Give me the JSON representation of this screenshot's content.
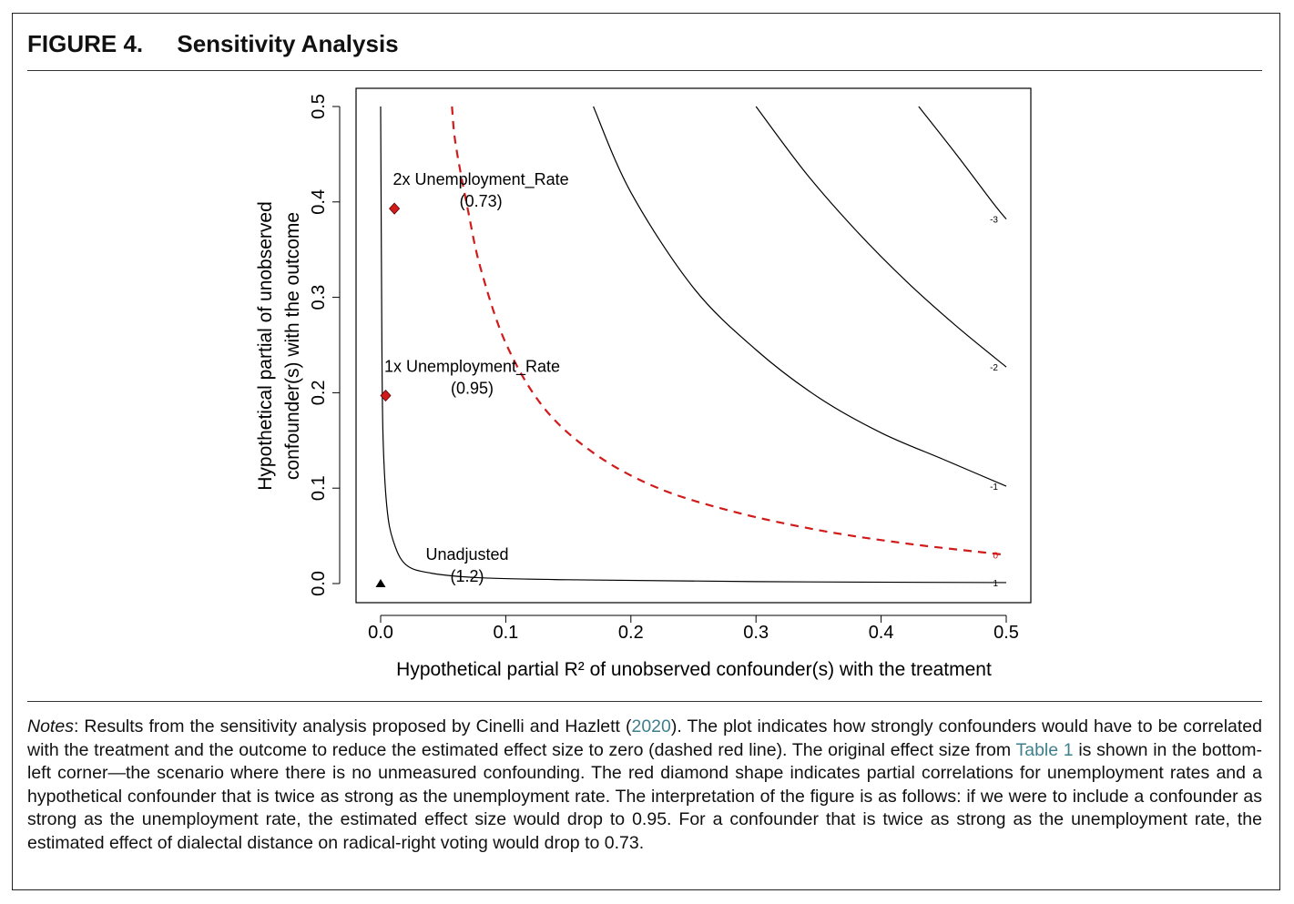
{
  "figure": {
    "number": "FIGURE 4.",
    "title": "Sensitivity Analysis"
  },
  "chart_data": {
    "type": "contour",
    "title": "",
    "xlabel": "Hypothetical partial R² of unobserved confounder(s) with the treatment",
    "ylabel_line1": "Hypothetical partial  of unobserved",
    "ylabel_line2": "confounder(s) with the outcome",
    "xlim": [
      0,
      0.5
    ],
    "ylim": [
      0,
      0.5
    ],
    "xticks": [
      "0.0",
      "0.1",
      "0.2",
      "0.3",
      "0.4",
      "0.5"
    ],
    "yticks": [
      "0.0",
      "0.1",
      "0.2",
      "0.3",
      "0.4",
      "0.5"
    ],
    "contours": [
      {
        "level": "1",
        "style": "solid",
        "color": "#000000",
        "points": [
          [
            0,
            0.5
          ],
          [
            0.001,
            0.25
          ],
          [
            0.002,
            0.15
          ],
          [
            0.005,
            0.08
          ],
          [
            0.01,
            0.045
          ],
          [
            0.02,
            0.02
          ],
          [
            0.04,
            0.011
          ],
          [
            0.08,
            0.006
          ],
          [
            0.15,
            0.004
          ],
          [
            0.3,
            0.002
          ],
          [
            0.5,
            0.001
          ]
        ]
      },
      {
        "level": "0",
        "style": "dashed",
        "color": "#d11a1a",
        "points": [
          [
            0.057,
            0.5
          ],
          [
            0.06,
            0.46
          ],
          [
            0.07,
            0.39
          ],
          [
            0.08,
            0.33
          ],
          [
            0.1,
            0.252
          ],
          [
            0.13,
            0.185
          ],
          [
            0.17,
            0.137
          ],
          [
            0.22,
            0.101
          ],
          [
            0.28,
            0.076
          ],
          [
            0.35,
            0.056
          ],
          [
            0.42,
            0.042
          ],
          [
            0.5,
            0.03
          ]
        ]
      },
      {
        "level": "-1",
        "style": "solid",
        "color": "#000000",
        "points": [
          [
            0.17,
            0.5
          ],
          [
            0.2,
            0.41
          ],
          [
            0.25,
            0.31
          ],
          [
            0.3,
            0.245
          ],
          [
            0.35,
            0.195
          ],
          [
            0.4,
            0.158
          ],
          [
            0.45,
            0.13
          ],
          [
            0.5,
            0.102
          ]
        ]
      },
      {
        "level": "-2",
        "style": "solid",
        "color": "#000000",
        "points": [
          [
            0.3,
            0.5
          ],
          [
            0.34,
            0.43
          ],
          [
            0.38,
            0.37
          ],
          [
            0.42,
            0.317
          ],
          [
            0.46,
            0.27
          ],
          [
            0.5,
            0.227
          ]
        ]
      },
      {
        "level": "-3",
        "style": "solid",
        "color": "#000000",
        "points": [
          [
            0.43,
            0.5
          ],
          [
            0.46,
            0.45
          ],
          [
            0.49,
            0.398
          ],
          [
            0.5,
            0.382
          ]
        ]
      }
    ],
    "points": [
      {
        "label": "Unadjusted",
        "value": "(1.2)",
        "x": 0,
        "y": 0,
        "marker": "triangle",
        "color": "#000000"
      },
      {
        "label": "1x Unemployment_Rate",
        "value": "(0.95)",
        "x": 0.004,
        "y": 0.197,
        "marker": "diamond",
        "color": "#d11a1a"
      },
      {
        "label": "2x Unemployment_Rate",
        "value": "(0.73)",
        "x": 0.011,
        "y": 0.393,
        "marker": "diamond",
        "color": "#d11a1a"
      }
    ]
  },
  "notes": {
    "lead": "Notes",
    "text_1": ": Results from the sensitivity analysis proposed by Cinelli and Hazlett (",
    "cite_year": "2020",
    "text_2": "). The plot indicates how strongly confounders would have to be correlated with the treatment and the outcome to reduce the estimated effect size to zero (dashed red line). The original effect size from ",
    "table_link": "Table 1",
    "text_3": " is shown in the bottom-left corner—the scenario where there is no unmeasured confounding. The red diamond shape indicates partial correlations for unemployment rates and a hypothetical confounder that is twice as strong as the unemployment rate. The interpretation of the figure is as follows: if we were to include a confounder as strong as the unemployment rate, the estimated effect size would drop to 0.95. For a confounder that is twice as strong as the unemployment rate, the estimated effect of dialectal distance on radical-right voting would drop to 0.73."
  }
}
